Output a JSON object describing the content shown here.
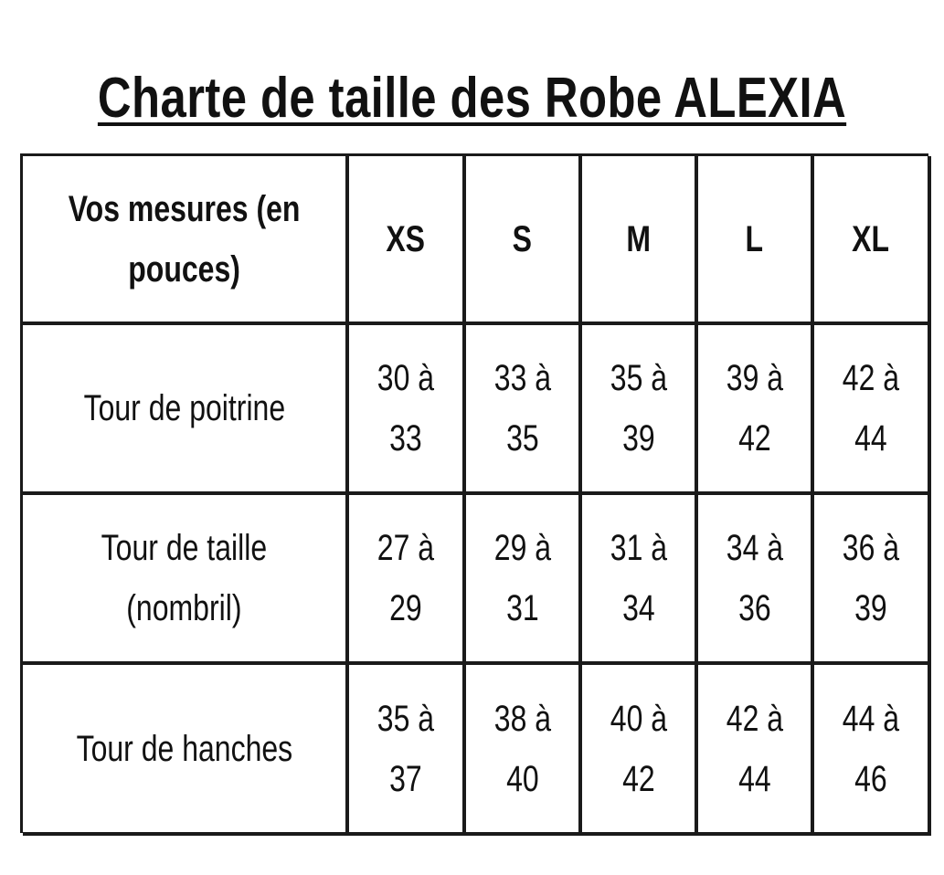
{
  "title": "Charte de taille des Robe ALEXIA",
  "table": {
    "header": [
      "Vos mesures (en\npouces)",
      "XS",
      "S",
      "M",
      "L",
      "XL"
    ],
    "rows": [
      {
        "label": "Tour de poitrine",
        "values": [
          "30 à\n33",
          "33 à\n35",
          "35 à\n39",
          "39 à\n42",
          "42 à\n44"
        ]
      },
      {
        "label": "Tour de taille\n(nombril)",
        "values": [
          "27 à\n29",
          "29 à\n31",
          "31 à\n34",
          "34 à\n36",
          "36 à\n39"
        ]
      },
      {
        "label": "Tour de hanches",
        "values": [
          "35 à\n37",
          "38 à\n40",
          "40 à\n42",
          "42 à\n44",
          "44 à\n46"
        ]
      }
    ]
  }
}
